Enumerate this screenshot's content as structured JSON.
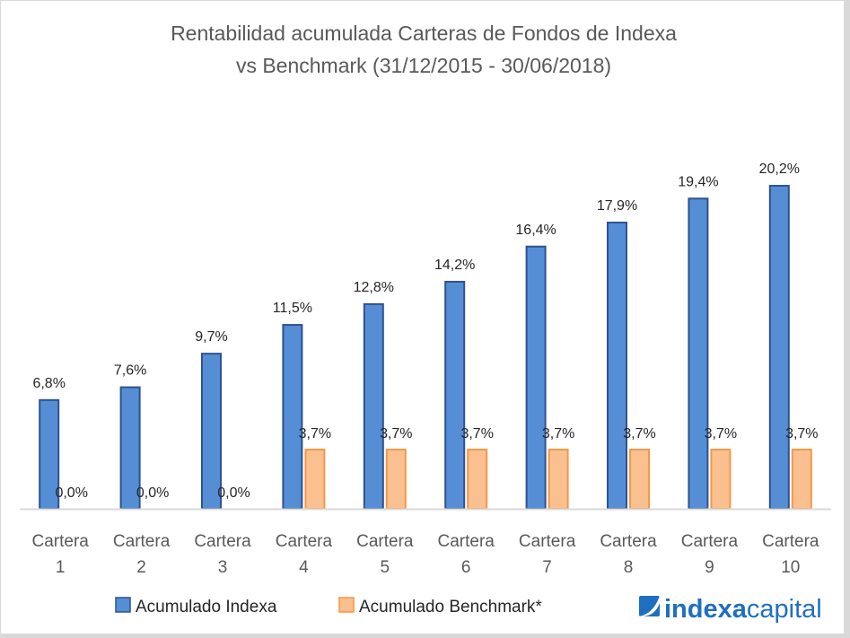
{
  "chart_data": {
    "type": "bar",
    "title": "Rentabilidad acumulada Carteras de Fondos de Indexa",
    "subtitle": "vs Benchmark (31/12/2015 - 30/06/2018)",
    "categories": [
      [
        "Cartera",
        "1"
      ],
      [
        "Cartera",
        "2"
      ],
      [
        "Cartera",
        "3"
      ],
      [
        "Cartera",
        "4"
      ],
      [
        "Cartera",
        "5"
      ],
      [
        "Cartera",
        "6"
      ],
      [
        "Cartera",
        "7"
      ],
      [
        "Cartera",
        "8"
      ],
      [
        "Cartera",
        "9"
      ],
      [
        "Cartera",
        "10"
      ]
    ],
    "series": [
      {
        "name": "Acumulado Indexa",
        "values": [
          6.8,
          7.6,
          9.7,
          11.5,
          12.8,
          14.2,
          16.4,
          17.9,
          19.4,
          20.2
        ],
        "labels": [
          "6,8%",
          "7,6%",
          "9,7%",
          "11,5%",
          "12,8%",
          "14,2%",
          "16,4%",
          "17,9%",
          "19,4%",
          "20,2%"
        ],
        "fill": "#558ed5",
        "stroke": "#2f528f"
      },
      {
        "name": "Acumulado Benchmark*",
        "values": [
          0.0,
          0.0,
          0.0,
          3.7,
          3.7,
          3.7,
          3.7,
          3.7,
          3.7,
          3.7
        ],
        "labels": [
          "0,0%",
          "0,0%",
          "0,0%",
          "3,7%",
          "3,7%",
          "3,7%",
          "3,7%",
          "3,7%",
          "3,7%",
          "3,7%"
        ],
        "fill": "#fac090",
        "stroke": "#f79646"
      }
    ],
    "xlabel": "",
    "ylabel": "",
    "ylim": [
      0,
      22
    ],
    "grid": false,
    "legend": "bottom-left",
    "axis_color": "#d9d9d9"
  },
  "logo": {
    "part1": "indexa",
    "part2": "capital",
    "color": "#1f6fc0"
  }
}
